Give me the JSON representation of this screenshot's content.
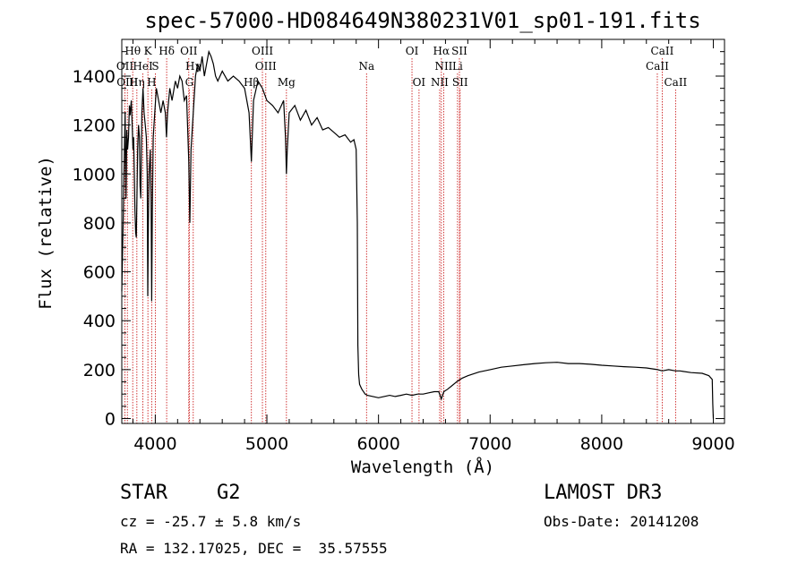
{
  "chart_data": {
    "type": "line",
    "title": "spec-57000-HD084649N380231V01_sp01-191.fits",
    "xlabel": "Wavelength (Å)",
    "ylabel": "Flux (relative)",
    "xlim": [
      3700,
      9100
    ],
    "ylim": [
      -20,
      1550
    ],
    "xticks": [
      4000,
      5000,
      6000,
      7000,
      8000,
      9000
    ],
    "yticks": [
      0,
      200,
      400,
      600,
      800,
      1000,
      1200,
      1400
    ],
    "series": [
      {
        "name": "spectrum",
        "points": [
          [
            3700,
            520
          ],
          [
            3712,
            800
          ],
          [
            3722,
            1050
          ],
          [
            3730,
            1250
          ],
          [
            3738,
            900
          ],
          [
            3745,
            1180
          ],
          [
            3752,
            1100
          ],
          [
            3760,
            1150
          ],
          [
            3768,
            1280
          ],
          [
            3775,
            1240
          ],
          [
            3785,
            1300
          ],
          [
            3795,
            1180
          ],
          [
            3800,
            1100
          ],
          [
            3806,
            1150
          ],
          [
            3812,
            1000
          ],
          [
            3818,
            850
          ],
          [
            3824,
            760
          ],
          [
            3830,
            740
          ],
          [
            3836,
            900
          ],
          [
            3842,
            1100
          ],
          [
            3850,
            1200
          ],
          [
            3858,
            1150
          ],
          [
            3864,
            950
          ],
          [
            3870,
            900
          ],
          [
            3880,
            1250
          ],
          [
            3890,
            1350
          ],
          [
            3900,
            1250
          ],
          [
            3910,
            1200
          ],
          [
            3920,
            1150
          ],
          [
            3928,
            1000
          ],
          [
            3933,
            500
          ],
          [
            3938,
            800
          ],
          [
            3945,
            1000
          ],
          [
            3955,
            1100
          ],
          [
            3962,
            900
          ],
          [
            3968,
            480
          ],
          [
            3974,
            850
          ],
          [
            3982,
            1150
          ],
          [
            3995,
            1250
          ],
          [
            4010,
            1350
          ],
          [
            4030,
            1300
          ],
          [
            4050,
            1250
          ],
          [
            4070,
            1300
          ],
          [
            4090,
            1250
          ],
          [
            4100,
            1150
          ],
          [
            4110,
            1250
          ],
          [
            4130,
            1350
          ],
          [
            4150,
            1300
          ],
          [
            4180,
            1380
          ],
          [
            4200,
            1350
          ],
          [
            4220,
            1400
          ],
          [
            4240,
            1380
          ],
          [
            4260,
            1300
          ],
          [
            4280,
            1320
          ],
          [
            4300,
            1050
          ],
          [
            4310,
            800
          ],
          [
            4320,
            1100
          ],
          [
            4340,
            1250
          ],
          [
            4360,
            1400
          ],
          [
            4380,
            1450
          ],
          [
            4400,
            1420
          ],
          [
            4420,
            1480
          ],
          [
            4440,
            1400
          ],
          [
            4460,
            1450
          ],
          [
            4480,
            1500
          ],
          [
            4500,
            1480
          ],
          [
            4520,
            1450
          ],
          [
            4540,
            1400
          ],
          [
            4560,
            1380
          ],
          [
            4600,
            1420
          ],
          [
            4650,
            1380
          ],
          [
            4700,
            1400
          ],
          [
            4750,
            1380
          ],
          [
            4800,
            1350
          ],
          [
            4840,
            1250
          ],
          [
            4861,
            1050
          ],
          [
            4880,
            1300
          ],
          [
            4920,
            1380
          ],
          [
            4960,
            1350
          ],
          [
            5000,
            1300
          ],
          [
            5050,
            1280
          ],
          [
            5100,
            1250
          ],
          [
            5150,
            1300
          ],
          [
            5167,
            1150
          ],
          [
            5175,
            1000
          ],
          [
            5183,
            1100
          ],
          [
            5200,
            1250
          ],
          [
            5250,
            1280
          ],
          [
            5300,
            1220
          ],
          [
            5350,
            1260
          ],
          [
            5400,
            1200
          ],
          [
            5450,
            1230
          ],
          [
            5500,
            1180
          ],
          [
            5550,
            1190
          ],
          [
            5600,
            1170
          ],
          [
            5650,
            1150
          ],
          [
            5700,
            1160
          ],
          [
            5750,
            1130
          ],
          [
            5780,
            1140
          ],
          [
            5800,
            1100
          ],
          [
            5810,
            800
          ],
          [
            5815,
            300
          ],
          [
            5822,
            180
          ],
          [
            5830,
            140
          ],
          [
            5850,
            120
          ],
          [
            5880,
            100
          ],
          [
            5900,
            95
          ],
          [
            5950,
            90
          ],
          [
            6000,
            85
          ],
          [
            6050,
            90
          ],
          [
            6100,
            95
          ],
          [
            6150,
            90
          ],
          [
            6200,
            95
          ],
          [
            6250,
            100
          ],
          [
            6300,
            95
          ],
          [
            6350,
            100
          ],
          [
            6400,
            100
          ],
          [
            6450,
            105
          ],
          [
            6500,
            110
          ],
          [
            6540,
            110
          ],
          [
            6563,
            80
          ],
          [
            6585,
            110
          ],
          [
            6620,
            120
          ],
          [
            6660,
            135
          ],
          [
            6700,
            150
          ],
          [
            6750,
            165
          ],
          [
            6800,
            175
          ],
          [
            6900,
            190
          ],
          [
            7000,
            200
          ],
          [
            7100,
            210
          ],
          [
            7200,
            215
          ],
          [
            7300,
            220
          ],
          [
            7400,
            225
          ],
          [
            7500,
            228
          ],
          [
            7600,
            230
          ],
          [
            7700,
            225
          ],
          [
            7800,
            225
          ],
          [
            7900,
            222
          ],
          [
            8000,
            218
          ],
          [
            8100,
            215
          ],
          [
            8200,
            212
          ],
          [
            8300,
            210
          ],
          [
            8400,
            207
          ],
          [
            8500,
            200
          ],
          [
            8542,
            195
          ],
          [
            8600,
            200
          ],
          [
            8662,
            195
          ],
          [
            8700,
            195
          ],
          [
            8800,
            188
          ],
          [
            8900,
            185
          ],
          [
            8960,
            175
          ],
          [
            8990,
            160
          ],
          [
            8995,
            60
          ],
          [
            9000,
            0
          ]
        ]
      }
    ],
    "spectral_lines": [
      {
        "label": "Hθ",
        "wavelength": 3798,
        "row": 1
      },
      {
        "label": "K",
        "wavelength": 3934,
        "row": 1
      },
      {
        "label": "Hδ",
        "wavelength": 4102,
        "row": 1
      },
      {
        "label": "OII",
        "wavelength": 4300,
        "row": 1
      },
      {
        "label": "OIII",
        "wavelength": 4960,
        "row": 1
      },
      {
        "label": "Na",
        "wavelength": 5893,
        "row": 2
      },
      {
        "label": "OI",
        "wavelength": 6300,
        "row": 1
      },
      {
        "label": "Hα",
        "wavelength": 6563,
        "row": 1
      },
      {
        "label": "SII",
        "wavelength": 6725,
        "row": 1
      },
      {
        "label": "CaII",
        "wavelength": 8542,
        "row": 1
      },
      {
        "label": "OII",
        "wavelength": 3728,
        "row": 2
      },
      {
        "label": "HeI",
        "wavelength": 3889,
        "row": 2
      },
      {
        "label": "S",
        "wavelength": 4001,
        "row": 2
      },
      {
        "label": "Hγ",
        "wavelength": 4340,
        "row": 2
      },
      {
        "label": "OIII",
        "wavelength": 4990,
        "row": 2
      },
      {
        "label": "NII",
        "wavelength": 6584,
        "row": 2
      },
      {
        "label": "Li",
        "wavelength": 6708,
        "row": 2
      },
      {
        "label": "CaII",
        "wavelength": 8498,
        "row": 2
      },
      {
        "label": "OIII",
        "wavelength": 3750,
        "row": 3
      },
      {
        "label": "Hη",
        "wavelength": 3835,
        "row": 3
      },
      {
        "label": "H",
        "wavelength": 3968,
        "row": 3
      },
      {
        "label": "G",
        "wavelength": 4305,
        "row": 3
      },
      {
        "label": "Hβ",
        "wavelength": 4861,
        "row": 3
      },
      {
        "label": "Mg",
        "wavelength": 5175,
        "row": 3
      },
      {
        "label": "OI",
        "wavelength": 6363,
        "row": 3
      },
      {
        "label": "NII",
        "wavelength": 6548,
        "row": 3
      },
      {
        "label": "SII",
        "wavelength": 6731,
        "row": 3
      },
      {
        "label": "CaII",
        "wavelength": 8662,
        "row": 3
      }
    ],
    "line_color": "#cc2222",
    "spectrum_color": "#000000"
  },
  "info": {
    "object_class": "STAR",
    "subclass": "G2",
    "survey": "LAMOST DR3",
    "cz": "cz = -25.7 ± 5.8 km/s",
    "obs_date": "Obs-Date: 20141208",
    "coords": "RA = 132.17025, DEC =  35.57555"
  }
}
